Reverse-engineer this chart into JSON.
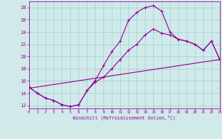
{
  "xlabel": "Windchill (Refroidissement éolien,°C)",
  "xlim": [
    0,
    23
  ],
  "ylim": [
    11.5,
    29.0
  ],
  "xticks": [
    0,
    1,
    2,
    3,
    4,
    5,
    6,
    7,
    8,
    9,
    10,
    11,
    12,
    13,
    14,
    15,
    16,
    17,
    18,
    19,
    20,
    21,
    22,
    23
  ],
  "yticks": [
    12,
    14,
    16,
    18,
    20,
    22,
    24,
    26,
    28
  ],
  "bg_color": "#d0eaea",
  "line_color": "#990099",
  "grid_color": "#a0cccc",
  "curve1_x": [
    0,
    1,
    2,
    3,
    4,
    5,
    6,
    7,
    8,
    9,
    10,
    11,
    12,
    13,
    14,
    15,
    16,
    17,
    18,
    19,
    20,
    21,
    22,
    23
  ],
  "curve1_y": [
    15.0,
    14.0,
    13.2,
    12.8,
    12.1,
    11.8,
    12.1,
    14.4,
    16.1,
    18.5,
    20.8,
    22.5,
    25.9,
    27.2,
    28.0,
    28.3,
    27.4,
    24.0,
    22.8,
    22.5,
    22.0,
    21.0,
    22.5,
    19.5
  ],
  "curve2_x": [
    0,
    1,
    2,
    3,
    4,
    5,
    6,
    7,
    8,
    9,
    10,
    11,
    12,
    13,
    14,
    15,
    16,
    17,
    18,
    19,
    20,
    21,
    22,
    23
  ],
  "curve2_y": [
    15.0,
    14.0,
    13.2,
    12.8,
    12.1,
    11.8,
    12.1,
    14.4,
    15.8,
    16.6,
    18.0,
    19.5,
    21.0,
    22.0,
    23.5,
    24.5,
    23.8,
    23.5,
    22.8,
    22.5,
    22.0,
    21.0,
    22.5,
    19.5
  ],
  "curve3_x": [
    0,
    23
  ],
  "curve3_y": [
    14.8,
    19.5
  ]
}
